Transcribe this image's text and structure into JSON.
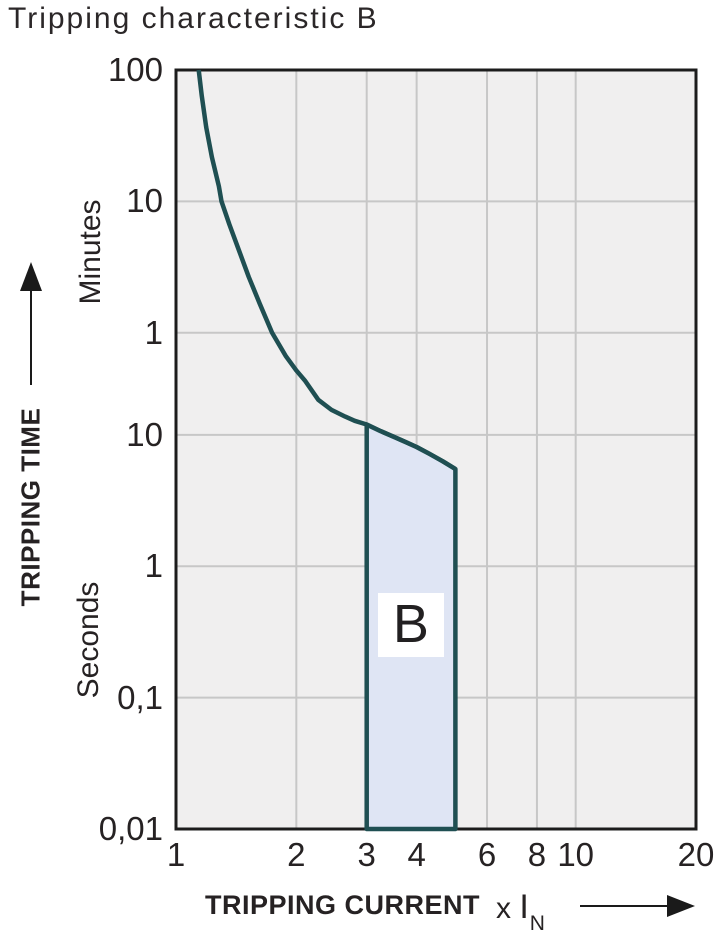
{
  "chart_data": {
    "type": "line",
    "title": "Tripping characteristic B",
    "x_axis": {
      "label": "TRIPPING CURRENT",
      "unit_prefix": "x",
      "unit_base": "I",
      "unit_sub": "N",
      "scale": "log",
      "range": [
        1,
        20
      ],
      "ticks": [
        {
          "v": 1,
          "label": "1"
        },
        {
          "v": 2,
          "label": "2"
        },
        {
          "v": 3,
          "label": "3"
        },
        {
          "v": 4,
          "label": "4"
        },
        {
          "v": 6,
          "label": "6"
        },
        {
          "v": 8,
          "label": "8"
        },
        {
          "v": 10,
          "label": "10"
        },
        {
          "v": 20,
          "label": "20"
        }
      ],
      "gridlines": [
        2,
        3,
        4,
        6,
        8,
        10
      ]
    },
    "y_axis": {
      "label": "TRIPPING TIME",
      "scale": "log",
      "range_seconds": [
        0.01,
        6000
      ],
      "units": [
        {
          "name": "Minutes"
        },
        {
          "name": "Seconds"
        }
      ],
      "ticks": [
        {
          "t": 6000,
          "label": "100"
        },
        {
          "t": 600,
          "label": "10"
        },
        {
          "t": 60,
          "label": "1"
        },
        {
          "t": 10,
          "label": "10"
        },
        {
          "t": 1,
          "label": "1"
        },
        {
          "t": 0.1,
          "label": "0,1"
        },
        {
          "t": 0.01,
          "label": "0,01"
        }
      ],
      "gridlines_seconds": [
        600,
        60,
        10,
        1,
        0.1
      ]
    },
    "curve": {
      "name": "type-B tripping curve",
      "points_x_multiple_vs_seconds": [
        [
          1.14,
          6000
        ],
        [
          1.16,
          3800
        ],
        [
          1.19,
          2200
        ],
        [
          1.23,
          1300
        ],
        [
          1.28,
          780
        ],
        [
          1.3,
          600
        ],
        [
          1.36,
          400
        ],
        [
          1.44,
          250
        ],
        [
          1.52,
          160
        ],
        [
          1.62,
          100
        ],
        [
          1.74,
          60
        ],
        [
          1.88,
          40
        ],
        [
          2.0,
          31
        ],
        [
          2.1,
          26
        ],
        [
          2.27,
          18.5
        ],
        [
          2.45,
          15.5
        ],
        [
          2.65,
          13.8
        ],
        [
          2.8,
          12.8
        ],
        [
          3.0,
          12.0
        ],
        [
          3.25,
          10.7
        ],
        [
          3.5,
          9.7
        ],
        [
          3.75,
          8.85
        ],
        [
          4.0,
          8.1
        ],
        [
          4.3,
          7.2
        ],
        [
          4.65,
          6.3
        ],
        [
          5.0,
          5.5
        ]
      ]
    },
    "band": {
      "label": "B",
      "x_range": [
        3,
        5
      ],
      "top_seconds_at_edges": [
        12.0,
        5.5
      ],
      "bottom_seconds": 0.01,
      "label_pos": {
        "x": 3.87,
        "t": 0.36
      }
    },
    "colors": {
      "curve": "#1f4f52",
      "band_fill": "#dfe5f4",
      "plot_bg": "#f0efef",
      "grid": "#c7c7c7",
      "border": "#1c1c1c",
      "text": "#262223",
      "arrow": "#1a1a1a"
    }
  }
}
